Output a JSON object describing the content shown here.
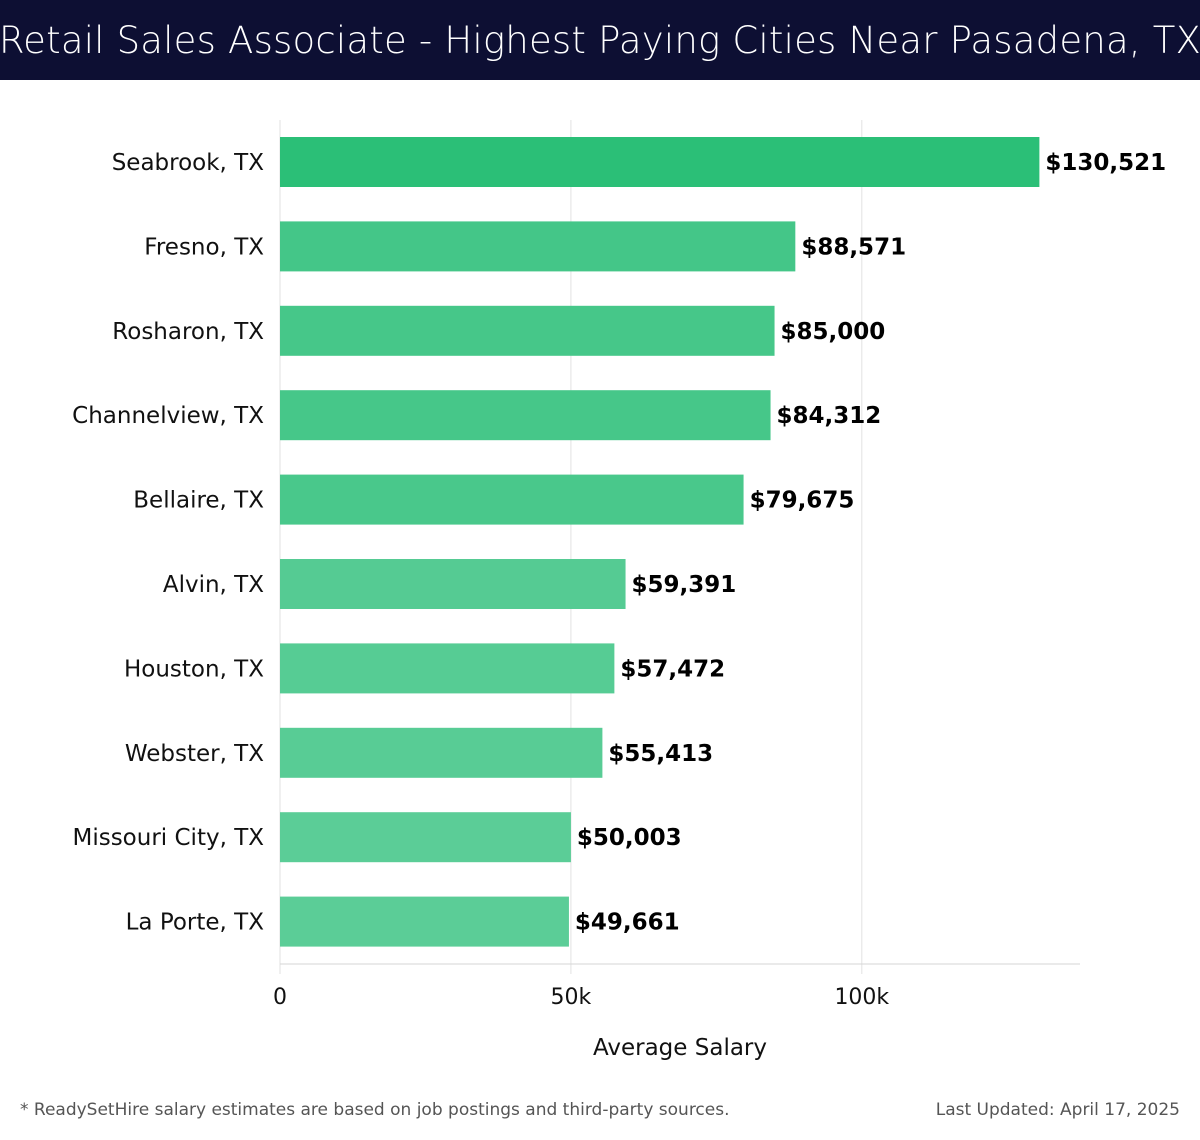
{
  "header": {
    "title": "Retail Sales Associate - Highest Paying Cities Near Pasadena, TX"
  },
  "colors": {
    "header_bg": "#0d0f33",
    "bar_dark": "#2bbf77",
    "bar_light": "#5bcd97",
    "grid": "#e2e2e2"
  },
  "chart_data": {
    "type": "bar",
    "orientation": "horizontal",
    "title": "Retail Sales Associate - Highest Paying Cities Near Pasadena, TX",
    "xlabel": "Average Salary",
    "ylabel": "",
    "categories": [
      "Seabrook, TX",
      "Fresno, TX",
      "Rosharon, TX",
      "Channelview, TX",
      "Bellaire, TX",
      "Alvin, TX",
      "Houston, TX",
      "Webster, TX",
      "Missouri City, TX",
      "La Porte, TX"
    ],
    "values": [
      130521,
      88571,
      85000,
      84312,
      79675,
      59391,
      57472,
      55413,
      50003,
      49661
    ],
    "value_labels": [
      "$130,521",
      "$88,571",
      "$85,000",
      "$84,312",
      "$79,675",
      "$59,391",
      "$57,472",
      "$55,413",
      "$50,003",
      "$49,661"
    ],
    "xlim": [
      0,
      137500
    ],
    "xticks": [
      0,
      50000,
      100000
    ],
    "xtick_labels": [
      "0",
      "50k",
      "100k"
    ],
    "grid": "vertical"
  },
  "footer": {
    "note": "* ReadySetHire salary estimates are based on job postings and third-party sources.",
    "updated": "Last Updated: April 17, 2025"
  }
}
